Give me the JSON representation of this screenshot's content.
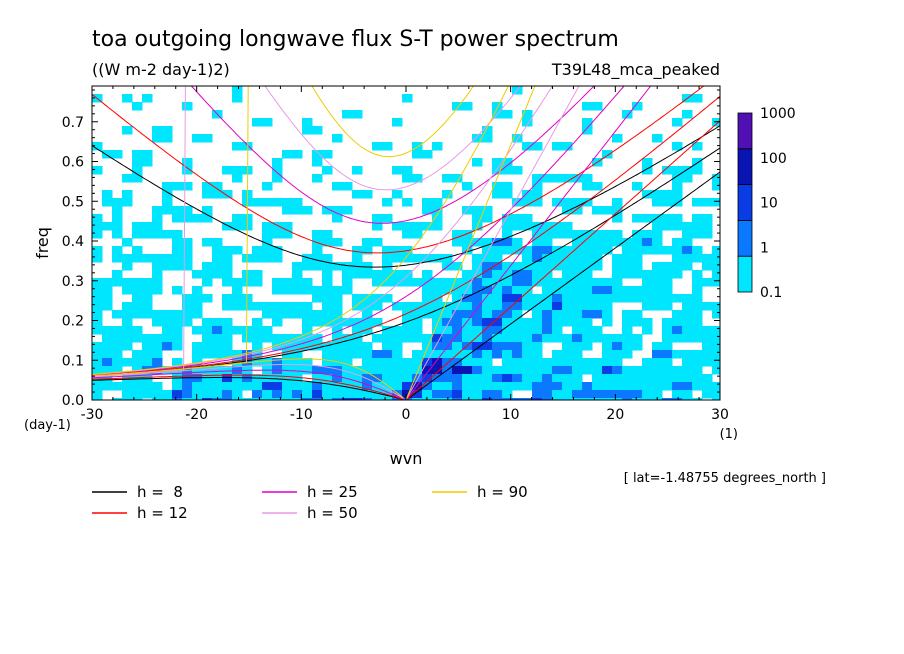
{
  "chart_data": {
    "type": "heatmap",
    "title": "toa outgoing longwave flux S-T power spectrum",
    "subtitle": "((W m-2 day-1)2)",
    "dataset_label": "T39L48_mca_peaked",
    "xlabel": "wvn",
    "ylabel": "freq",
    "x_unit": "(1)",
    "y_unit": "(day-1)",
    "xlim": [
      -30,
      30
    ],
    "ylim": [
      0.0,
      0.79
    ],
    "x_ticks": [
      -30,
      -20,
      -10,
      0,
      10,
      20,
      30
    ],
    "x_tick_labels": [
      "-30",
      "-20",
      "-10",
      "0",
      "10",
      "20",
      "30"
    ],
    "y_ticks": [
      0.0,
      0.1,
      0.2,
      0.3,
      0.4,
      0.5,
      0.6,
      0.7
    ],
    "y_tick_labels": [
      "0.0",
      "0.1",
      "0.2",
      "0.3",
      "0.4",
      "0.5",
      "0.6",
      "0.7"
    ],
    "colorbar": {
      "levels": [
        "0.1",
        "1",
        "10",
        "100",
        "1000"
      ],
      "colors": [
        "#00e6ff",
        "#0a78ff",
        "#0a3ce6",
        "#0a14b4",
        "#5010b4"
      ]
    },
    "annotation": "[ lat=-1.48755 degrees_north ]",
    "dispersion_curves": [
      {
        "name": "h =  8",
        "color": "#000000"
      },
      {
        "name": "h = 12",
        "color": "#ff0000"
      },
      {
        "name": "h = 25",
        "color": "#e000c8"
      },
      {
        "name": "h = 50",
        "color": "#e89ae8"
      },
      {
        "name": "h = 90",
        "color": "#f0cc00"
      }
    ],
    "grid": false
  }
}
